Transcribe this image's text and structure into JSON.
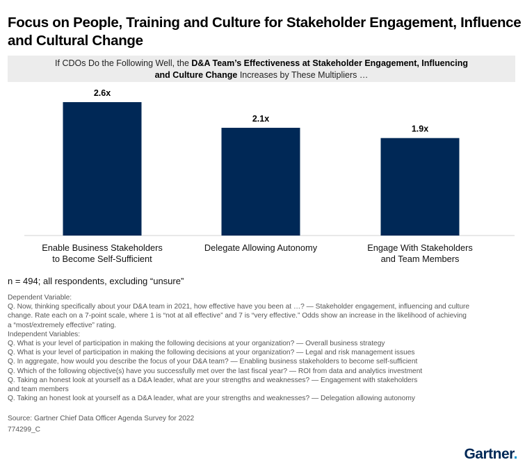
{
  "title_line1": "Focus on People, Training and Culture for Stakeholder Engagement, Influence",
  "title_line2": "and Cultural Change",
  "banner": {
    "pre": "If CDOs Do the Following Well, the ",
    "bold1": "D&A Team’s Effectiveness at Stakeholder Engagement, Influencing",
    "bold2": "and Culture Change",
    "post": " Increases by These Multipliers …"
  },
  "chart_data": {
    "type": "bar",
    "title": "If CDOs Do the Following Well, the D&A Team’s Effectiveness at Stakeholder Engagement, Influencing and Culture Change Increases by These Multipliers …",
    "categories": [
      [
        "Enable Business Stakeholders",
        "to Become Self-Sufficient"
      ],
      [
        "Delegate Allowing Autonomy"
      ],
      [
        "Engage With Stakeholders",
        "and Team Members"
      ]
    ],
    "values": [
      2.6,
      2.1,
      1.9
    ],
    "value_labels": [
      "2.6x",
      "2.1x",
      "1.9x"
    ],
    "ylim": [
      0,
      2.6
    ],
    "xlabel": "",
    "ylabel": "",
    "bar_color": "#002856"
  },
  "sample_note": "n = 494; all respondents, excluding “unsure”",
  "notes": [
    "Dependent Variable:",
    "Q. Now, thinking specifically about your D&A team in 2021, how effective have you been at …? — Stakeholder engagement, influencing and culture",
    "change. Rate each on a 7-point scale, where 1 is “not at all effective” and 7 is “very effective.” Odds show an increase in the likelihood of achieving",
    "a “most/extremely effective” rating.",
    "Independent Variables:",
    "Q. What is your level of participation in making the following decisions at your organization? — Overall business strategy",
    "Q. What is your level of participation in making the following decisions at your organization? — Legal and risk management issues",
    "Q. In aggregate, how would you describe the focus of your D&A team? — Enabling business stakeholders to become self-sufficient",
    "Q. Which of the following objective(s) have you successfully met over the last fiscal year? — ROI from data and analytics investment",
    "Q. Taking an honest look at yourself as a D&A leader, what are your strengths and weaknesses? — Engagement with stakeholders",
    "and team members",
    "Q. Taking an honest look at yourself as a D&A leader, what are your strengths and weaknesses? — Delegation allowing autonomy"
  ],
  "source": "Source: Gartner Chief Data Officer Agenda Survey for 2022",
  "code": "774299_C",
  "logo_text": "Gartner",
  "logo_dot": "."
}
